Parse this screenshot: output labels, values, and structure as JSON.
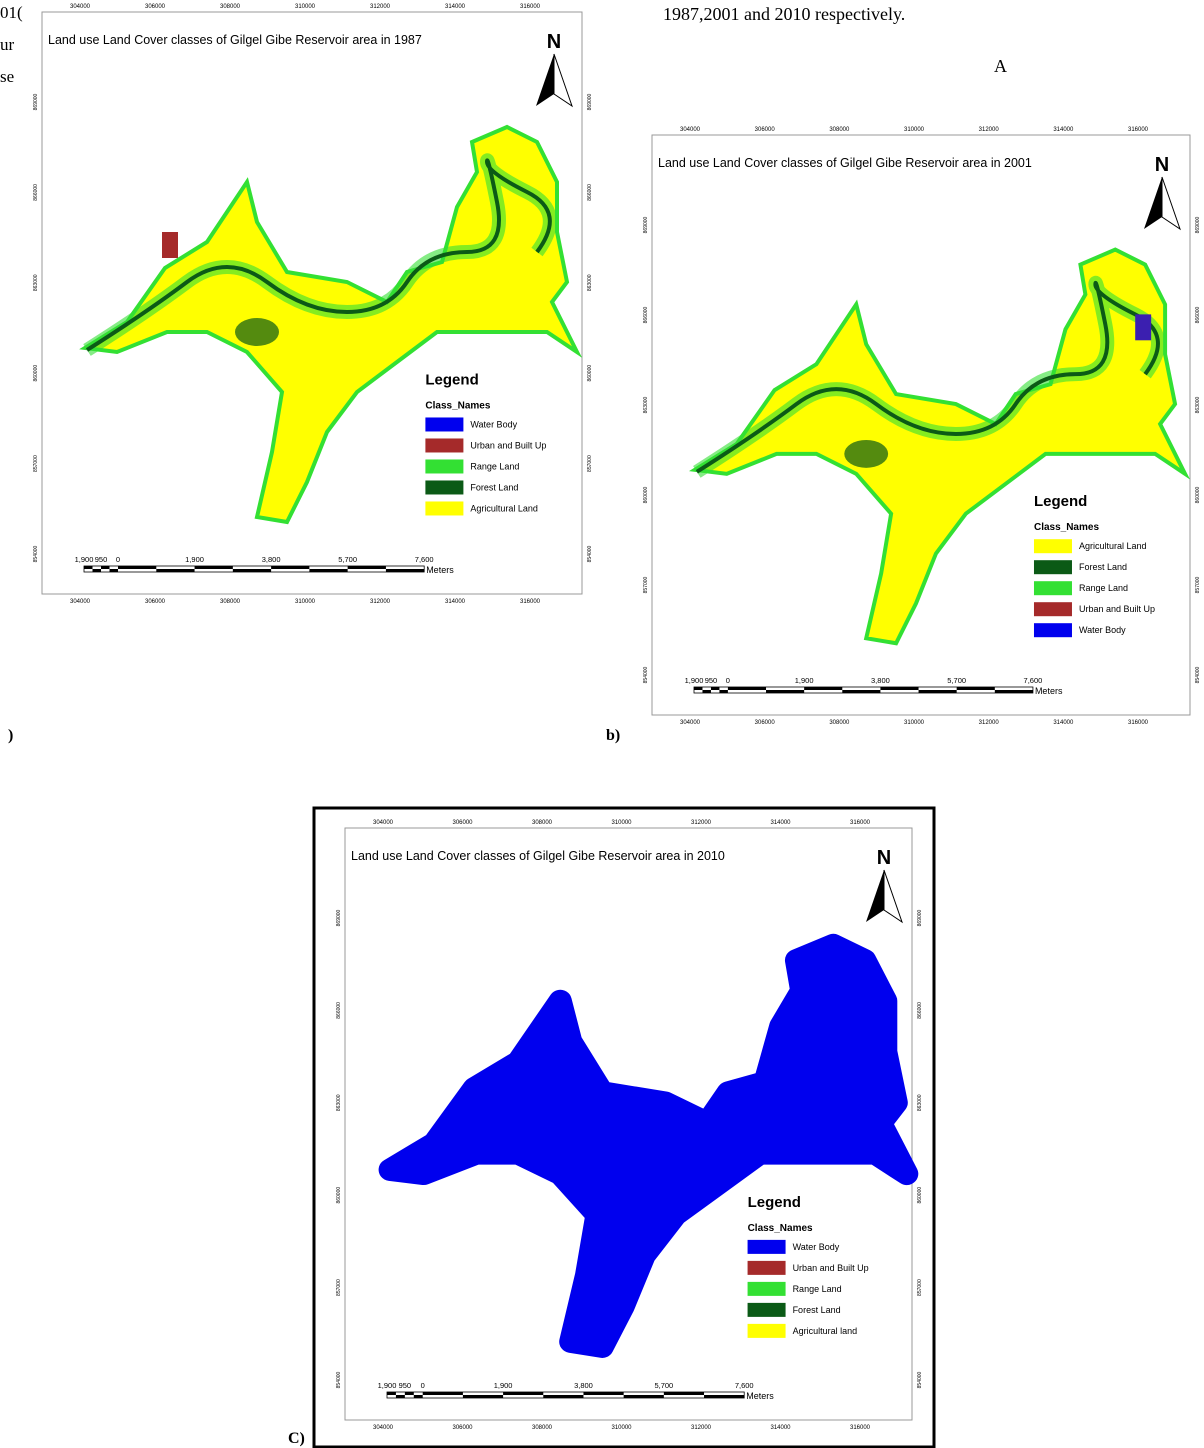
{
  "text": {
    "left_fragments": [
      "01(",
      "ur",
      "se"
    ],
    "right_top": "1987,2001 and 2010 respectively.",
    "label_a": "A"
  },
  "figures": [
    {
      "label": ")",
      "title": "Land use Land Cover classes of Gilgel Gibe Reservoir area in 1987",
      "north": "N",
      "legend_title": "Legend",
      "legend_subtitle": "Class_Names",
      "legend": [
        {
          "name": "Water Body",
          "color": "#0000ee"
        },
        {
          "name": "Urban and Built Up",
          "color": "#a52a2a"
        },
        {
          "name": "Range Land",
          "color": "#33e033"
        },
        {
          "name": "Forest Land",
          "color": "#0b5a16"
        },
        {
          "name": "Agricultural Land",
          "color": "#ffff00"
        }
      ],
      "scale_labels": [
        "1,900",
        "950",
        "0",
        "1,900",
        "3,800",
        "5,700",
        "7,600"
      ],
      "scale_unit": "Meters",
      "x_labels": [
        "304000",
        "306000",
        "308000",
        "310000",
        "312000",
        "314000",
        "316000"
      ],
      "y_labels": [
        "869000",
        "866000",
        "863000",
        "860000",
        "857000",
        "854000"
      ]
    },
    {
      "label": "b)",
      "title": "Land use Land Cover classes of Gilgel Gibe Reservoir area in 2001",
      "north": "N",
      "legend_title": "Legend",
      "legend_subtitle": "Class_Names",
      "legend": [
        {
          "name": "Agricultural Land",
          "color": "#ffff00"
        },
        {
          "name": "Forest Land",
          "color": "#0b5a16"
        },
        {
          "name": "Range Land",
          "color": "#33e033"
        },
        {
          "name": "Urban and Built Up",
          "color": "#a52a2a"
        },
        {
          "name": "Water Body",
          "color": "#0000ee"
        }
      ],
      "scale_labels": [
        "1,900",
        "950",
        "0",
        "1,900",
        "3,800",
        "5,700",
        "7,600"
      ],
      "scale_unit": "Meters",
      "x_labels": [
        "304000",
        "306000",
        "308000",
        "310000",
        "312000",
        "314000",
        "316000"
      ],
      "y_labels": [
        "869000",
        "866000",
        "863000",
        "860000",
        "857000",
        "854000"
      ]
    },
    {
      "label": "C)",
      "title": "Land use Land Cover classes of Gilgel Gibe Reservoir area in 2010",
      "north": "N",
      "legend_title": "Legend",
      "legend_subtitle": "Class_Names",
      "legend": [
        {
          "name": "Water Body",
          "color": "#0000ee"
        },
        {
          "name": "Urban and Built Up",
          "color": "#a52a2a"
        },
        {
          "name": "Range Land",
          "color": "#33e033"
        },
        {
          "name": "Forest Land",
          "color": "#0b5a16"
        },
        {
          "name": "Agricultural land",
          "color": "#ffff00"
        }
      ],
      "scale_labels": [
        "1,900",
        "950",
        "0",
        "1,900",
        "3,800",
        "5,700",
        "7,600"
      ],
      "scale_unit": "Meters",
      "x_labels": [
        "304000",
        "306000",
        "308000",
        "310000",
        "312000",
        "314000",
        "316000"
      ],
      "y_labels": [
        "869000",
        "866000",
        "863000",
        "860000",
        "857000",
        "854000"
      ]
    }
  ]
}
